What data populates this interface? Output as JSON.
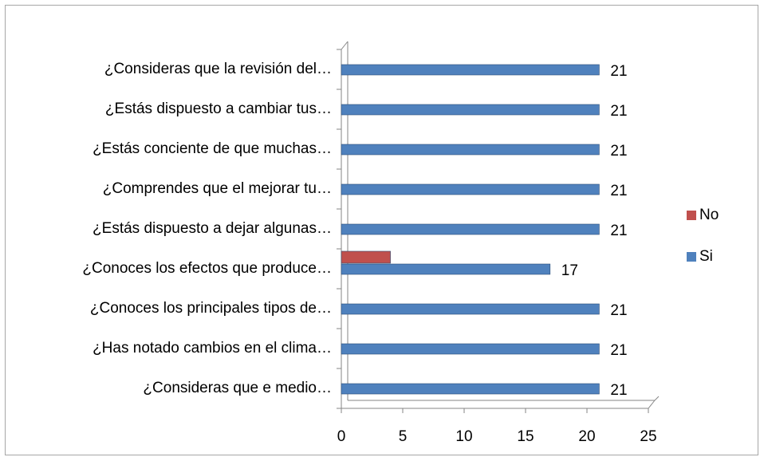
{
  "chart_data": {
    "type": "bar",
    "orientation": "horizontal",
    "categories": [
      "¿Consideras que la revisión del…",
      "¿Estás dispuesto a cambiar tus…",
      "¿Estás conciente de que muchas…",
      "¿Comprendes que el mejorar tu…",
      "¿Estás dispuesto a dejar algunas…",
      "¿Conoces los efectos que produce…",
      "¿Conoces los principales tipos de…",
      "¿Has notado cambios en el clima…",
      "¿Consideras que e medio…"
    ],
    "series": [
      {
        "name": "No",
        "color": "#c0504d",
        "values": [
          0,
          0,
          0,
          0,
          0,
          4,
          0,
          0,
          0
        ],
        "data_labels": false
      },
      {
        "name": "Si",
        "color": "#4f81bd",
        "values": [
          21,
          21,
          21,
          21,
          21,
          17,
          21,
          21,
          21
        ],
        "data_labels": true
      }
    ],
    "xlim": [
      0,
      25
    ],
    "xticks": [
      0,
      5,
      10,
      15,
      20,
      25
    ],
    "legend": "right"
  }
}
